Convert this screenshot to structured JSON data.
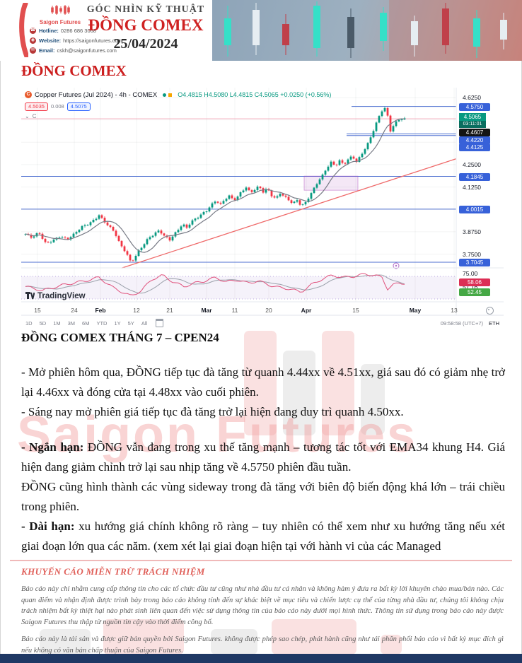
{
  "header": {
    "brand": "Saigon Futures",
    "kicker": "GÓC NHÌN KỸ THUẬT",
    "title": "ĐỒNG COMEX",
    "date": "25/04/2024",
    "hotline_label": "Hotline:",
    "hotline": "0286 686 3068",
    "website_label": "Website:",
    "website": "https://saigonfutures.com",
    "email_label": "Email:",
    "email": "cskh@saigonfutures.com"
  },
  "page_title": "ĐỒNG COMEX",
  "chart": {
    "symbol": "Copper Futures (Jul 2024) - 4h - COMEX",
    "symbol_icon": "C",
    "ohlc": "O4.4815  H4.5080  L4.4815  C4.5065  +0.0250 (+0.56%)",
    "pill_red": "4.5035",
    "pill_mid": "0.008",
    "pill_blue": "4.5075",
    "legend_collapse": "C",
    "timeframes": [
      "1D",
      "5D",
      "1M",
      "3M",
      "6M",
      "YTD",
      "1Y",
      "5Y",
      "All"
    ],
    "clock": "09:58:58 (UTC+7)",
    "session": "ETH",
    "tv_brand": "TradingView"
  },
  "chart_data": {
    "type": "candlestick",
    "title": "Copper Futures (Jul 2024) - 4h - COMEX",
    "last_bar": {
      "open": 4.4815,
      "high": 4.508,
      "low": 4.4815,
      "close": 4.5065,
      "change": "+0.0250",
      "change_pct": "+0.56%"
    },
    "countdown": "03:11:01",
    "ylim": [
      3.65,
      4.65
    ],
    "x_ticks": [
      "15",
      "24",
      "Feb",
      "12",
      "21",
      "Mar",
      "11",
      "20",
      "Apr",
      "15",
      "May",
      "13"
    ],
    "y_ticks_plain": [
      "4.6250",
      "4.2500",
      "4.1250",
      "3.8750",
      "3.7500"
    ],
    "grid_prices": [
      4.625,
      4.5,
      4.375,
      4.25,
      4.125,
      4.0,
      3.875,
      3.75
    ],
    "levels_full": [
      4.1845,
      4.0015,
      3.7045
    ],
    "levels_partial": [
      4.575,
      4.422,
      4.4125
    ],
    "last_price": 4.5065,
    "ema_label": 4.4607,
    "trendline": {
      "from_price": 3.672,
      "to_price": 4.283
    },
    "sideway_box": {
      "price_top": 4.186,
      "price_bottom": 4.107
    },
    "close_anchors": [
      [
        6,
        3.86
      ],
      [
        15,
        3.84
      ],
      [
        25,
        3.87
      ],
      [
        35,
        3.81
      ],
      [
        45,
        3.83
      ],
      [
        55,
        3.85
      ],
      [
        65,
        3.83
      ],
      [
        75,
        3.86
      ],
      [
        85,
        3.9
      ],
      [
        95,
        3.92
      ],
      [
        105,
        3.95
      ],
      [
        110,
        3.97
      ],
      [
        118,
        3.93
      ],
      [
        125,
        3.9
      ],
      [
        132,
        3.87
      ],
      [
        140,
        3.8
      ],
      [
        148,
        3.76
      ],
      [
        155,
        3.705
      ],
      [
        160,
        3.73
      ],
      [
        166,
        3.77
      ],
      [
        172,
        3.8
      ],
      [
        180,
        3.84
      ],
      [
        188,
        3.86
      ],
      [
        195,
        3.88
      ],
      [
        202,
        3.85
      ],
      [
        210,
        3.83
      ],
      [
        216,
        3.86
      ],
      [
        222,
        3.89
      ],
      [
        228,
        3.92
      ],
      [
        234,
        3.9
      ],
      [
        240,
        3.93
      ],
      [
        248,
        3.95
      ],
      [
        255,
        3.97
      ],
      [
        262,
        3.99
      ],
      [
        268,
        4.02
      ],
      [
        275,
        4.05
      ],
      [
        282,
        4.03
      ],
      [
        288,
        4.06
      ],
      [
        295,
        4.08
      ],
      [
        300,
        4.05
      ],
      [
        306,
        4.07
      ],
      [
        312,
        4.1
      ],
      [
        318,
        4.12
      ],
      [
        324,
        4.09
      ],
      [
        330,
        4.11
      ],
      [
        336,
        4.13
      ],
      [
        342,
        4.1
      ],
      [
        348,
        4.12
      ],
      [
        354,
        4.08
      ],
      [
        360,
        4.06
      ],
      [
        366,
        4.09
      ],
      [
        372,
        4.07
      ],
      [
        378,
        4.05
      ],
      [
        384,
        4.03
      ],
      [
        390,
        4.05
      ],
      [
        396,
        4.02
      ],
      [
        402,
        4.04
      ],
      [
        408,
        4.08
      ],
      [
        414,
        4.12
      ],
      [
        420,
        4.16
      ],
      [
        426,
        4.19
      ],
      [
        432,
        4.23
      ],
      [
        438,
        4.26
      ],
      [
        444,
        4.24
      ],
      [
        450,
        4.27
      ],
      [
        456,
        4.25
      ],
      [
        462,
        4.28
      ],
      [
        468,
        4.3
      ],
      [
        474,
        4.27
      ],
      [
        480,
        4.3
      ],
      [
        486,
        4.34
      ],
      [
        492,
        4.38
      ],
      [
        498,
        4.44
      ],
      [
        504,
        4.5
      ],
      [
        510,
        4.55
      ],
      [
        514,
        4.565
      ],
      [
        518,
        4.52
      ],
      [
        522,
        4.44
      ],
      [
        526,
        4.47
      ],
      [
        530,
        4.49
      ],
      [
        536,
        4.51
      ],
      [
        542,
        4.5065
      ]
    ],
    "rsi": {
      "current": 58.06,
      "signal": 52.45,
      "other": 57.16,
      "upper_label": "75.00",
      "band": [
        70,
        30
      ],
      "anchors": [
        [
          6,
          52
        ],
        [
          30,
          45
        ],
        [
          60,
          55
        ],
        [
          90,
          62
        ],
        [
          110,
          68
        ],
        [
          130,
          50
        ],
        [
          155,
          35
        ],
        [
          170,
          45
        ],
        [
          185,
          65
        ],
        [
          200,
          72
        ],
        [
          215,
          60
        ],
        [
          230,
          52
        ],
        [
          245,
          58
        ],
        [
          260,
          62
        ],
        [
          275,
          68
        ],
        [
          290,
          60
        ],
        [
          305,
          64
        ],
        [
          320,
          58
        ],
        [
          335,
          62
        ],
        [
          350,
          55
        ],
        [
          365,
          50
        ],
        [
          380,
          48
        ],
        [
          395,
          42
        ],
        [
          410,
          55
        ],
        [
          425,
          65
        ],
        [
          440,
          72
        ],
        [
          455,
          68
        ],
        [
          470,
          70
        ],
        [
          485,
          74
        ],
        [
          500,
          72
        ],
        [
          510,
          68
        ],
        [
          518,
          48
        ],
        [
          526,
          55
        ],
        [
          534,
          58
        ],
        [
          542,
          58
        ]
      ]
    }
  },
  "analysis": {
    "heading": "ĐỒNG COMEX THÁNG 7 – CPEN24",
    "p1": "- Mở phiên hôm qua, ĐỒNG tiếp tục đà tăng từ quanh 4.44xx về 4.51xx, giá sau đó có giảm nhẹ trở lại 4.46xx và đóng cửa tại 4.48xx vào cuối phiên.",
    "p2": "- Sáng nay mở phiên giá tiếp tục đà tăng trở lại hiện đang duy trì quanh 4.50xx.",
    "p3_bold": "- Ngắn hạn:",
    "p3_text": " ĐỒNG vẫn đang trong xu thế tăng mạnh – tương tác tốt với EMA34 khung H4. Giá hiện đang giảm chỉnh trở lại sau nhịp tăng về 4.5750 phiên đầu tuần.",
    "p4": "ĐỒNG cũng hình thành các vùng sideway trong đà tăng với biên độ biến động khá lớn – trái chiều trong phiên.",
    "p5_bold": "- Dài hạn:",
    "p5_text": " xu hướng giá chính không rõ ràng – tuy nhiên có thể xem như xu hướng tăng nếu xét giai đoạn lớn qua các năm. (xem xét lại giai đoạn hiện tại với hành vi của các Managed"
  },
  "disclaimer": {
    "title": "KHUYẾN CÁO MIỄN TRỪ TRÁCH NHIỆM",
    "p1": "Báo cáo này chỉ nhằm cung cấp thông tin cho các tổ chức đầu tư cũng như nhà đầu tư cá nhân và không hàm ý đưa ra bất kỳ lời khuyên chào mua/bán nào. Các quan điểm và nhận định được trình bày trong báo cáo không tính đến sự khác biệt về mục tiêu và chiến lược cụ thể của từng nhà đầu tư, chúng tôi không chịu trách nhiệm bất kỳ thiệt hại nào phát sinh liên quan đến việc sử dụng thông tin của báo cáo này dưới mọi hình thức. Thông tin sử dụng trong báo cáo này được Saigon Futures thu thập từ nguồn tin cậy vào thời điểm công bố.",
    "p2": "Báo cáo này là tài sản và được giữ bản quyền bởi Saigon Futures. không được phép sao chép, phát hành cũng như tái phân phối báo cáo vì bất kỳ mục đích gì nếu không có văn bản chấp thuận của Saigon Futures."
  },
  "watermark": {
    "text": "Saigon Futures"
  }
}
